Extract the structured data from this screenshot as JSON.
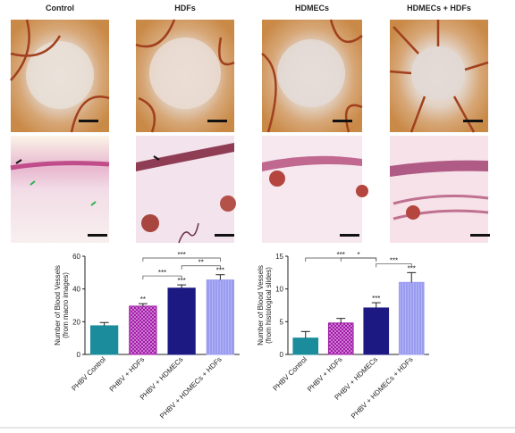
{
  "panel_titles": [
    "Control",
    "HDFs",
    "HDMECs",
    "HDMECs + HDFs"
  ],
  "chart_data": [
    {
      "type": "bar",
      "ylabel": [
        "Number of Blood Vessels",
        "(from macro images)"
      ],
      "categories": [
        "PHBV Control",
        "PHBV + HDFs",
        "PHBV + HDMECs",
        "PHBV + HDMECs + HDFs"
      ],
      "values": [
        17.5,
        29.5,
        40.5,
        45.5
      ],
      "errors": [
        2,
        1.5,
        2,
        3.2
      ],
      "colors": [
        "#1a8c9c",
        "#a01ea6",
        "#1c1a82",
        "#9a9cf0"
      ],
      "bar_labels": [
        null,
        "**",
        "***",
        "***"
      ],
      "brackets": [
        {
          "from": 1,
          "to": 3,
          "label": "***"
        },
        {
          "from": 1,
          "to": 2,
          "label": "***"
        },
        {
          "from": 2,
          "to": 3,
          "label": "**"
        }
      ],
      "ylim": [
        0,
        60
      ],
      "yticks": [
        0,
        20,
        40,
        60
      ]
    },
    {
      "type": "bar",
      "ylabel": [
        "Number of Blood Vessels",
        "(from histological slides)"
      ],
      "categories": [
        "PHBV Control",
        "PHBV + HDFs",
        "PHBV + HDMECs",
        "PHBV + HDMECs + HDFs"
      ],
      "values": [
        2.5,
        4.8,
        7.1,
        11.0
      ],
      "errors": [
        1.0,
        0.7,
        0.8,
        1.5
      ],
      "colors": [
        "#1a8c9c",
        "#a01ea6",
        "#1c1a82",
        "#9a9cf0"
      ],
      "bar_labels": [
        null,
        null,
        "***",
        "***"
      ],
      "brackets": [
        {
          "from": 0,
          "to": 2,
          "label": "***"
        },
        {
          "from": 2,
          "to": 3,
          "label": "***"
        },
        {
          "from": 1,
          "to": 2,
          "label": "*"
        }
      ],
      "ylim": [
        0,
        15
      ],
      "yticks": [
        0,
        5,
        10,
        15
      ]
    }
  ]
}
